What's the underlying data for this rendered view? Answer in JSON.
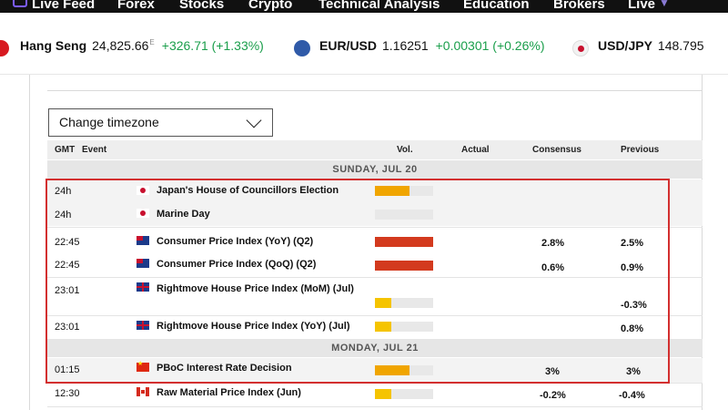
{
  "nav": {
    "items": [
      "Live Feed",
      "Forex",
      "Stocks",
      "Crypto",
      "Technical Analysis",
      "Education",
      "Brokers",
      "Live"
    ]
  },
  "ticker": [
    {
      "name": "Hang Seng",
      "value": "24,825.66",
      "marker": "E",
      "change": "+326.71 (+1.33%)"
    },
    {
      "name": "EUR/USD",
      "value": "1.16251",
      "change": "+0.00301 (+0.26%)"
    },
    {
      "name": "USD/JPY",
      "value": "148.795",
      "change": ""
    }
  ],
  "timezone": {
    "label": "Change timezone"
  },
  "table_header": {
    "gmt": "GMT",
    "event": "Event",
    "vol": "Vol.",
    "actual": "Actual",
    "consensus": "Consensus",
    "previous": "Previous"
  },
  "days": [
    {
      "label": "SUNDAY, JUL 20"
    },
    {
      "label": "MONDAY, JUL 21"
    }
  ],
  "events": [
    {
      "time": "24h",
      "flag": "japan-flag-icon",
      "event": "Japan's House of Councillors Election",
      "volatility": 0.6,
      "vol_color": "#f0a500",
      "actual": "",
      "consensus": "",
      "previous": ""
    },
    {
      "time": "24h",
      "flag": "japan-flag-icon",
      "event": "Marine Day",
      "volatility": 0,
      "vol_color": "#f0a500",
      "actual": "",
      "consensus": "",
      "previous": ""
    },
    {
      "time": "22:45",
      "flag": "new-zealand-flag-icon",
      "event": "Consumer Price Index (YoY) (Q2)",
      "volatility": 1.0,
      "vol_color": "#d33a1e",
      "actual": "",
      "consensus": "2.8%",
      "previous": "2.5%"
    },
    {
      "time": "22:45",
      "flag": "new-zealand-flag-icon",
      "event": "Consumer Price Index (QoQ) (Q2)",
      "volatility": 1.0,
      "vol_color": "#d33a1e",
      "actual": "",
      "consensus": "0.6%",
      "previous": "0.9%"
    },
    {
      "time": "23:01",
      "flag": "uk-flag-icon",
      "event": "Rightmove House Price Index (MoM) (Jul)",
      "volatility": 0.28,
      "vol_color": "#f5c400",
      "actual": "",
      "consensus": "",
      "previous": "-0.3%"
    },
    {
      "time": "23:01",
      "flag": "uk-flag-icon",
      "event": "Rightmove House Price Index (YoY) (Jul)",
      "volatility": 0.28,
      "vol_color": "#f5c400",
      "actual": "",
      "consensus": "",
      "previous": "0.8%"
    },
    {
      "time": "01:15",
      "flag": "china-flag-icon",
      "event": "PBoC Interest Rate Decision",
      "volatility": 0.6,
      "vol_color": "#f0a500",
      "actual": "",
      "consensus": "3%",
      "previous": "3%"
    },
    {
      "time": "12:30",
      "flag": "canada-flag-icon",
      "event": "Raw Material Price Index (Jun)",
      "volatility": 0.28,
      "vol_color": "#f5c400",
      "actual": "",
      "consensus": "-0.2%",
      "previous": "-0.4%"
    }
  ],
  "colors": {
    "accent": "#7c5cff",
    "positive": "#1a9e4b",
    "highlight": "#d32f2f"
  }
}
